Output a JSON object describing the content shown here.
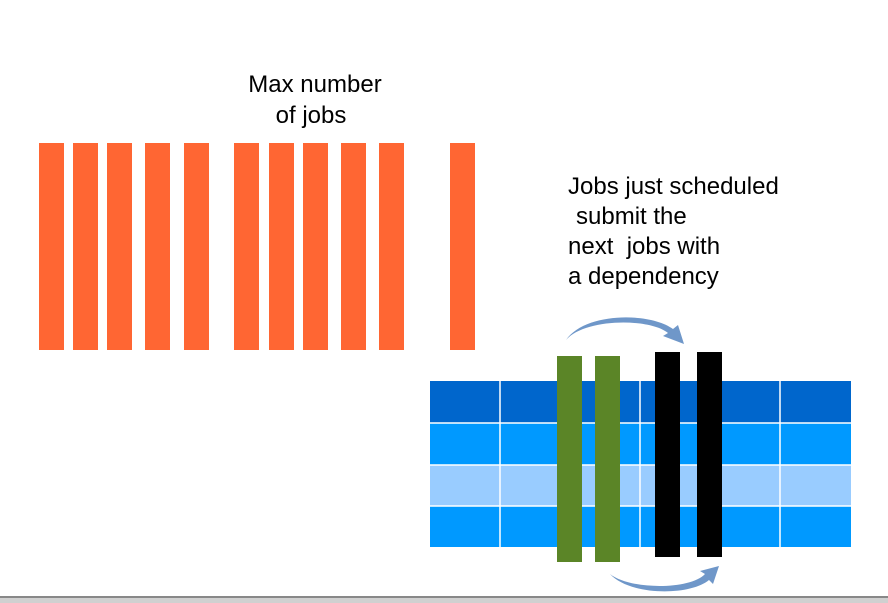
{
  "labels": {
    "max_jobs": [
      "Max number",
      "of jobs"
    ],
    "scheduled_note": [
      "Jobs just scheduled",
      "submit the",
      "next  jobs with",
      "a dependency"
    ]
  }
}
